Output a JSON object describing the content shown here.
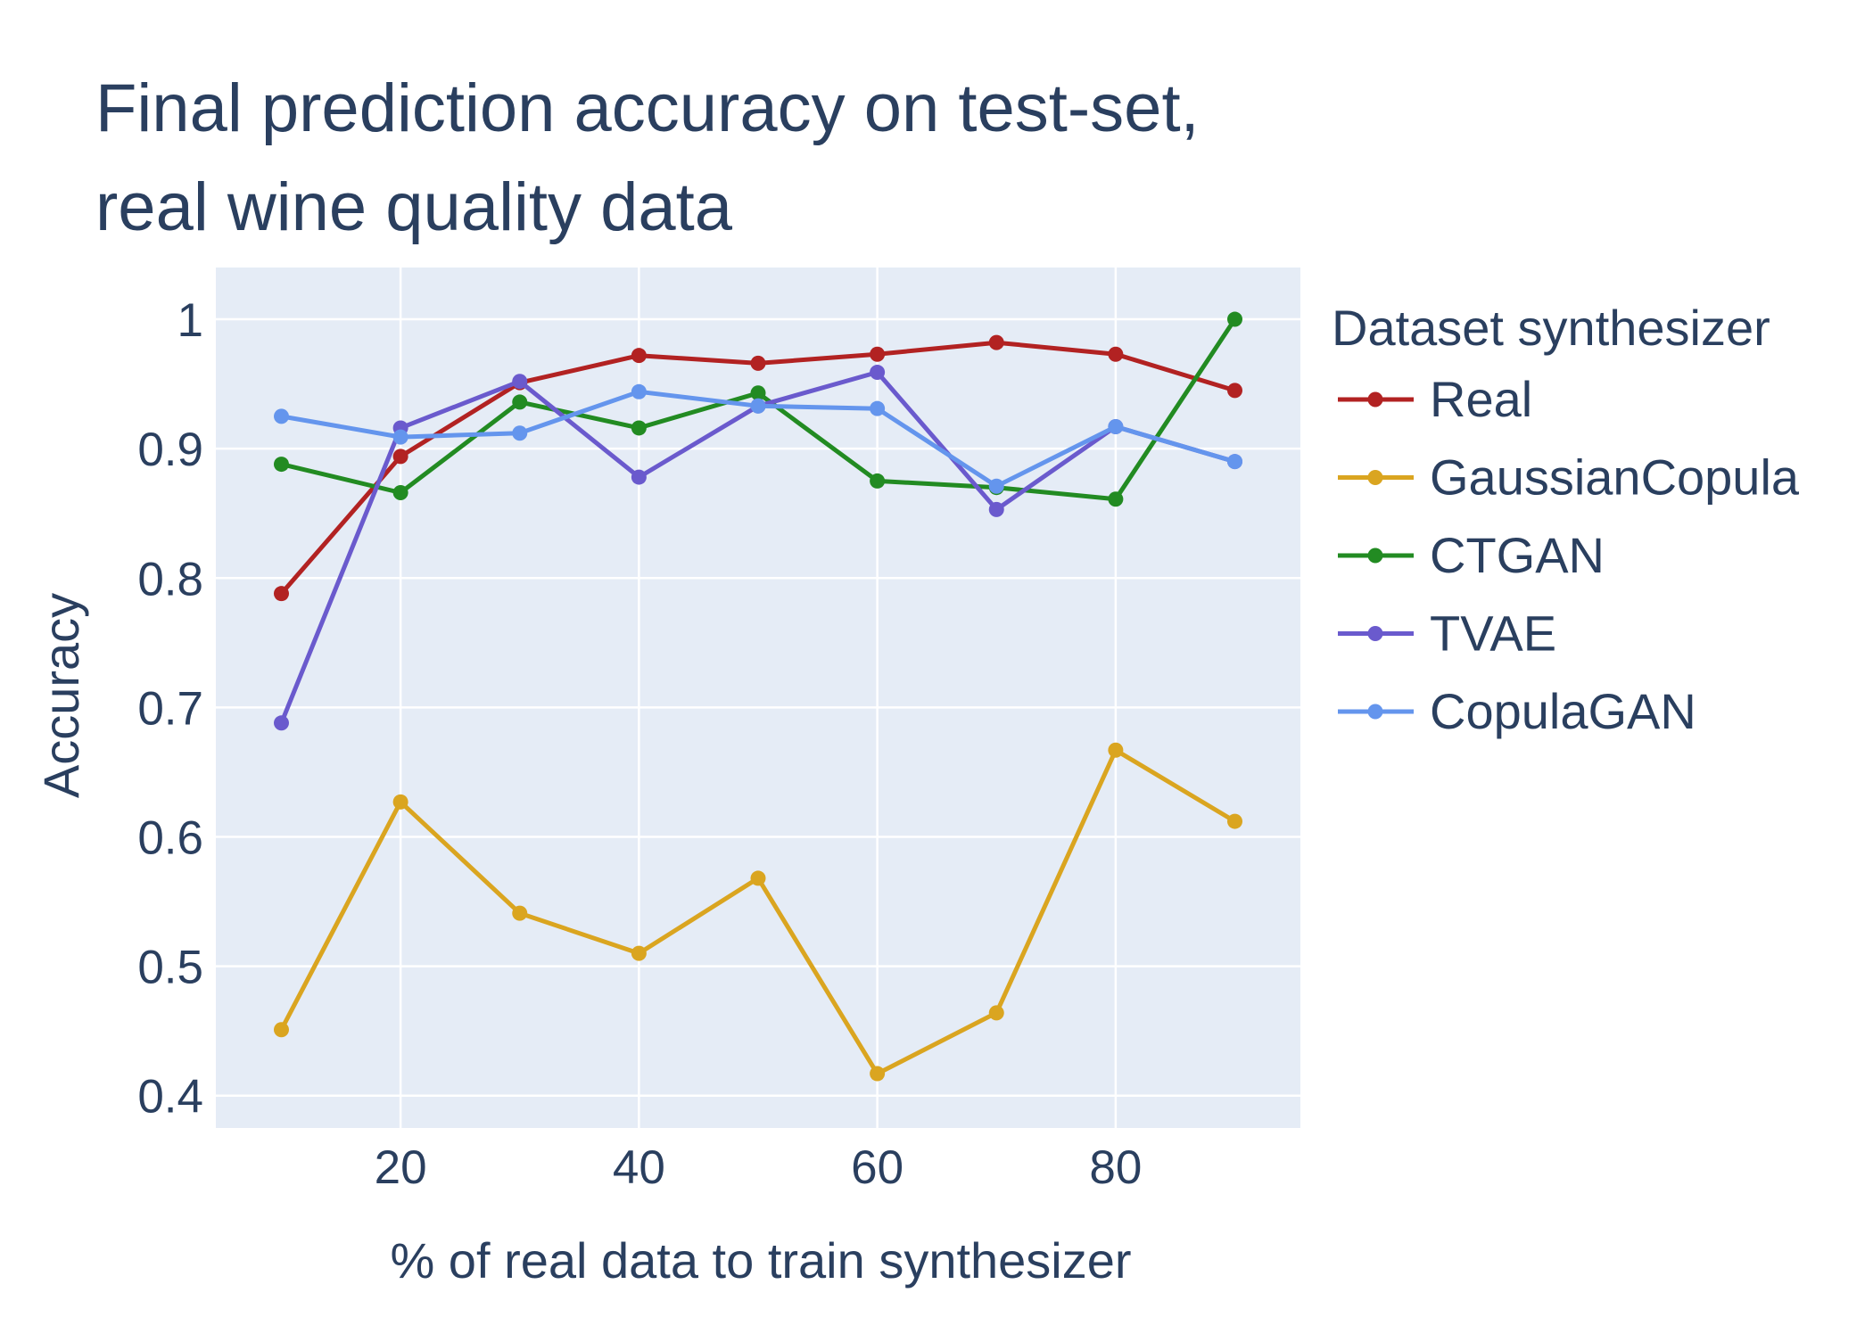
{
  "chart_data": {
    "type": "line",
    "title_line1": "Final prediction accuracy on test-set,",
    "title_line2": "real wine quality data",
    "xlabel": "% of real data to train synthesizer",
    "ylabel": "Accuracy",
    "legend_title": "Dataset synthesizer",
    "legend_position": "right",
    "grid": true,
    "xlim": [
      4.5,
      95.5
    ],
    "ylim": [
      0.375,
      1.04
    ],
    "x_ticks": [
      20,
      40,
      60,
      80
    ],
    "y_ticks": [
      0.4,
      0.5,
      0.6,
      0.7,
      0.8,
      0.9,
      1
    ],
    "x_tick_labels": [
      "20",
      "40",
      "60",
      "80"
    ],
    "y_tick_labels": [
      "0.4",
      "0.5",
      "0.6",
      "0.7",
      "0.8",
      "0.9",
      "1"
    ],
    "x": [
      10,
      20,
      30,
      40,
      50,
      60,
      70,
      80,
      90
    ],
    "series": [
      {
        "name": "Real",
        "color": "#b22222",
        "values": [
          0.788,
          0.894,
          0.951,
          0.972,
          0.966,
          0.973,
          0.982,
          0.973,
          0.945
        ]
      },
      {
        "name": "GaussianCopula",
        "color": "#daa520",
        "values": [
          0.451,
          0.627,
          0.541,
          0.51,
          0.568,
          0.417,
          0.464,
          0.667,
          0.612
        ]
      },
      {
        "name": "CTGAN",
        "color": "#228b22",
        "values": [
          0.888,
          0.866,
          0.936,
          0.916,
          0.943,
          0.875,
          0.87,
          0.861,
          1.0
        ]
      },
      {
        "name": "TVAE",
        "color": "#6a5acd",
        "values": [
          0.688,
          0.916,
          0.952,
          0.878,
          0.933,
          0.959,
          0.853,
          0.917,
          0.89
        ]
      },
      {
        "name": "CopulaGAN",
        "color": "#6495ed",
        "values": [
          0.925,
          0.909,
          0.912,
          0.944,
          0.933,
          0.931,
          0.871,
          0.917,
          0.89
        ]
      }
    ]
  },
  "colors": {
    "plot_background": "#e5ecf6",
    "grid": "#ffffff",
    "text": "#2a3f5f"
  }
}
